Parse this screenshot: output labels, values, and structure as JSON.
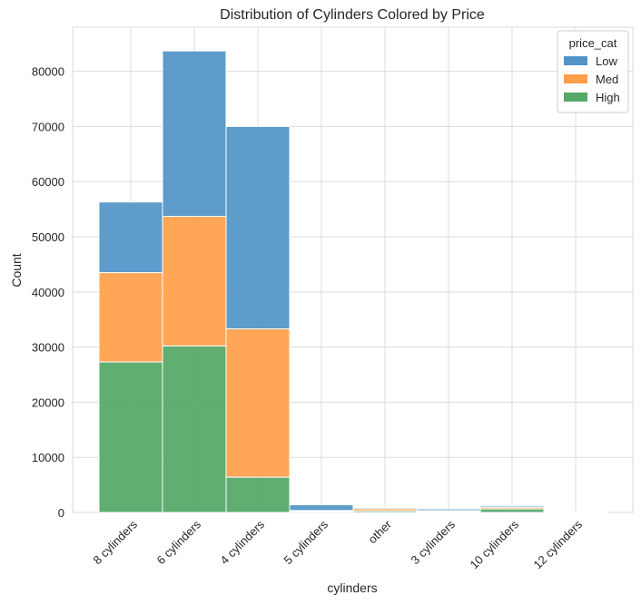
{
  "chart_data": {
    "type": "bar",
    "stacked": true,
    "title": "Distribution of Cylinders Colored by Price",
    "xlabel": "cylinders",
    "ylabel": "Count",
    "categories": [
      "8 cylinders",
      "6 cylinders",
      "4 cylinders",
      "5 cylinders",
      "other",
      "3 cylinders",
      "10 cylinders",
      "12 cylinders"
    ],
    "series": [
      {
        "name": "High",
        "color": "#55a868",
        "values": [
          27300,
          30200,
          6400,
          200,
          300,
          150,
          650,
          30
        ]
      },
      {
        "name": "Med",
        "color": "#ff9f4a",
        "values": [
          16200,
          23500,
          26900,
          150,
          400,
          200,
          300,
          20
        ]
      },
      {
        "name": "Low",
        "color": "#5294c8",
        "values": [
          12800,
          30000,
          36700,
          1050,
          200,
          300,
          250,
          30
        ]
      }
    ],
    "ylim": [
      0,
      88000
    ],
    "yticks": [
      0,
      10000,
      20000,
      30000,
      40000,
      50000,
      60000,
      70000,
      80000
    ],
    "grid": true,
    "legend": {
      "title": "price_cat",
      "placement": "top-right",
      "entries": [
        {
          "label": "Low",
          "color": "#5294c8"
        },
        {
          "label": "Med",
          "color": "#ff9f4a"
        },
        {
          "label": "High",
          "color": "#55a868"
        }
      ]
    }
  }
}
